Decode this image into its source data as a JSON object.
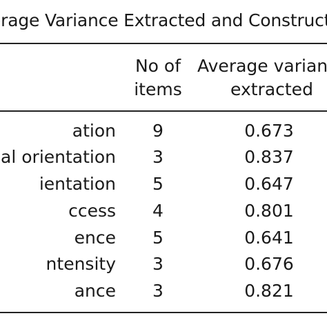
{
  "caption": "erage Variance Extracted and Construct",
  "header": {
    "items_line1": "No of",
    "items_line2": "items",
    "ave_line1": "Average varian",
    "ave_line2": "extracted"
  },
  "rows": [
    {
      "construct": "ation",
      "items": "9",
      "ave": "0.673"
    },
    {
      "construct": "al orientation",
      "items": "3",
      "ave": "0.837"
    },
    {
      "construct": "ientation",
      "items": "5",
      "ave": "0.647"
    },
    {
      "construct": "ccess",
      "items": "4",
      "ave": "0.801"
    },
    {
      "construct": "ence",
      "items": "5",
      "ave": "0.641"
    },
    {
      "construct": "ntensity",
      "items": "3",
      "ave": "0.676"
    },
    {
      "construct": "ance",
      "items": "3",
      "ave": "0.821"
    }
  ]
}
